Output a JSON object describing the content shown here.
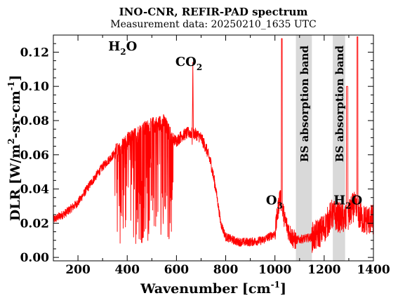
{
  "chart_data": {
    "type": "line",
    "title": "INO-CNR, REFIR-PAD spectrum",
    "subtitle": "Measurement data: 20250210_1635 UTC",
    "xlabel": {
      "main": "Wavenumber [cm",
      "sup": "-1",
      "tail": "]"
    },
    "ylabel": {
      "part1": "DLR [W/m",
      "sup1": "2",
      "part2": "-sr-cm",
      "sup2": "-1",
      "part3": "]"
    },
    "xlim": [
      100,
      1400
    ],
    "ylim": [
      -0.002,
      0.13
    ],
    "xticks": [
      200,
      400,
      600,
      800,
      1000,
      1200,
      1400
    ],
    "yticks": [
      0.0,
      0.02,
      0.04,
      0.06,
      0.08,
      0.1,
      0.12
    ],
    "xtick_labels": [
      "200",
      "400",
      "600",
      "800",
      "1000",
      "1200",
      "1400"
    ],
    "ytick_labels": [
      "0.00",
      "0.02",
      "0.04",
      "0.06",
      "0.08",
      "0.10",
      "0.12"
    ],
    "grid": false,
    "line_color": "#ff0000",
    "band_color": "#d9d9d9",
    "bands": [
      {
        "x": [
          1085,
          1150
        ],
        "label": "BS absorption band"
      },
      {
        "x": [
          1235,
          1285
        ],
        "label": "BS absorption band"
      }
    ],
    "annotations": [
      {
        "base": "H",
        "sub": "2",
        "tail": "O",
        "x": 440,
        "y": 0.121
      },
      {
        "base": "CO",
        "sub": "2",
        "tail": "",
        "x": 705,
        "y": 0.112
      },
      {
        "base": "O",
        "sub": "3",
        "tail": "",
        "x": 1032,
        "y": 0.031
      },
      {
        "base": "H",
        "sub": "2",
        "tail": "O",
        "x": 1355,
        "y": 0.031
      }
    ],
    "series": [
      {
        "x": [
          100,
          150,
          200,
          250,
          300,
          350,
          400,
          450,
          500,
          550,
          580,
          600,
          620,
          650,
          680,
          700,
          720,
          740,
          760,
          780,
          800,
          850,
          900,
          950,
          1000,
          1020,
          1040,
          1060,
          1080,
          1160,
          1200,
          1230,
          1290,
          1320,
          1340,
          1360,
          1380,
          1400
        ],
        "y": [
          0.022,
          0.026,
          0.032,
          0.043,
          0.053,
          0.061,
          0.068,
          0.073,
          0.077,
          0.079,
          0.07,
          0.068,
          0.071,
          0.073,
          0.072,
          0.07,
          0.064,
          0.055,
          0.04,
          0.02,
          0.012,
          0.009,
          0.009,
          0.01,
          0.014,
          0.036,
          0.022,
          0.014,
          0.01,
          0.012,
          0.017,
          0.025,
          0.022,
          0.03,
          0.025,
          0.022,
          0.022,
          0.022
        ]
      }
    ]
  }
}
